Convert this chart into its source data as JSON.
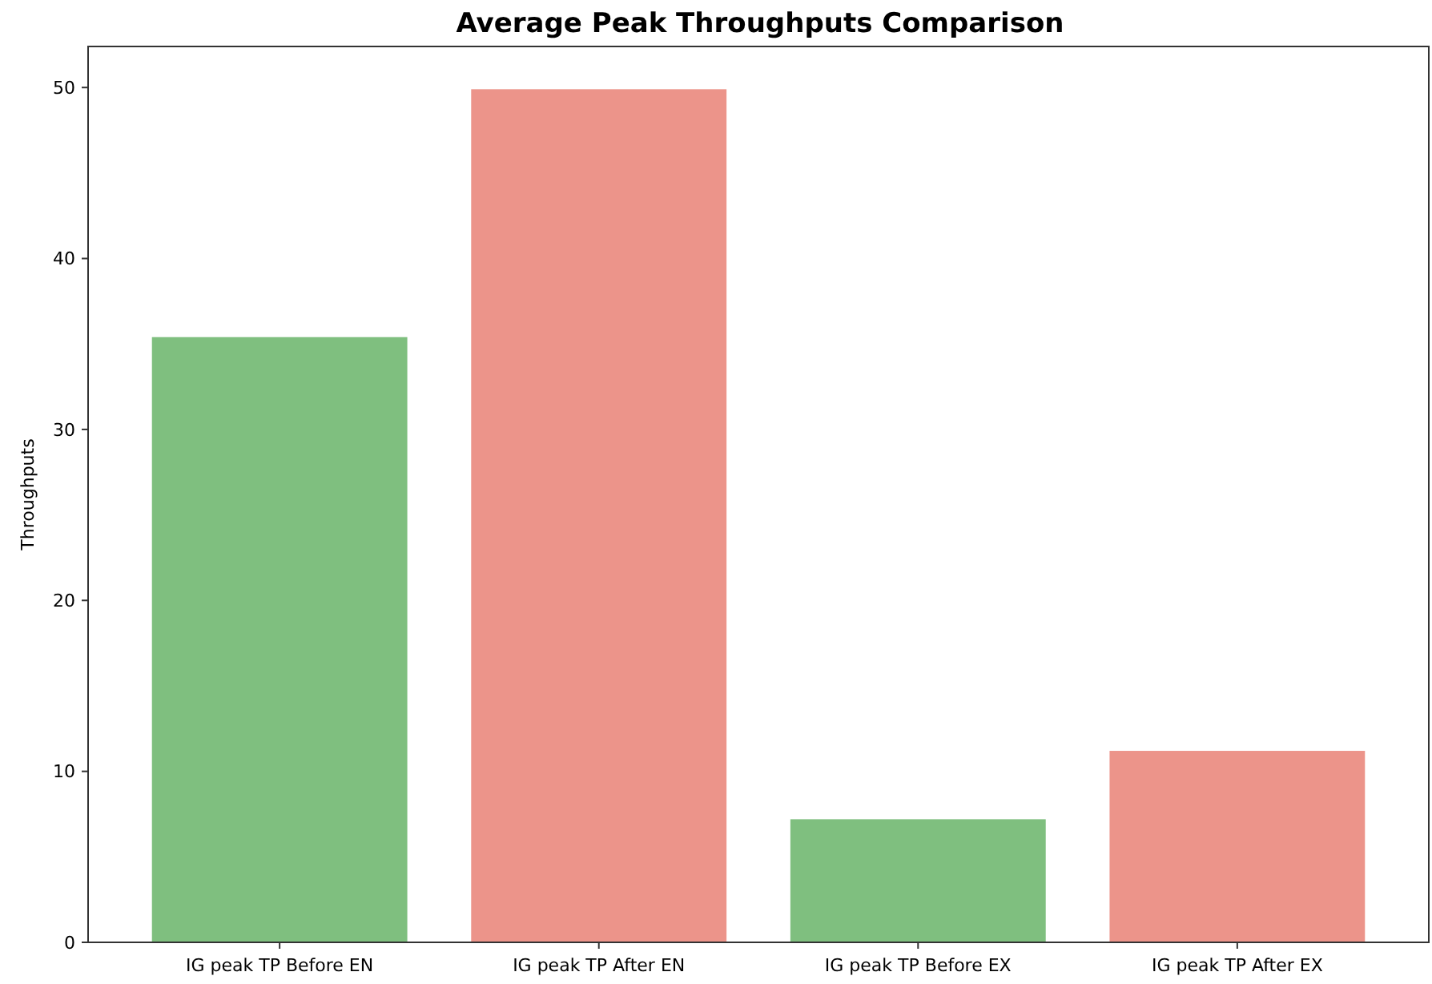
{
  "chart_data": {
    "type": "bar",
    "title": "Average Peak Throughputs Comparison",
    "ylabel": "Throughputs",
    "categories": [
      "IG peak TP Before EN",
      "IG peak TP After EN",
      "IG peak TP Before EX",
      "IG peak TP After EX"
    ],
    "values": [
      35.4,
      49.9,
      7.2,
      11.2
    ],
    "colors": [
      "#7fbf7f",
      "#ec948a",
      "#7fbf7f",
      "#ec948a"
    ],
    "ylim": [
      0,
      52.4
    ],
    "yticks": [
      0,
      10,
      20,
      30,
      40,
      50
    ],
    "grid": false
  }
}
